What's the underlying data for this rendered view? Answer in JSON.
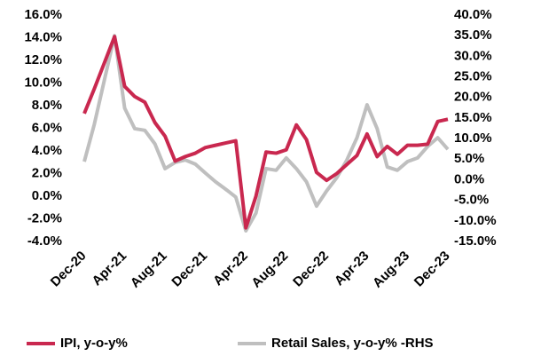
{
  "chart_data": {
    "type": "line",
    "categories": [
      "Dec-20",
      null,
      null,
      null,
      "Apr-21",
      null,
      null,
      null,
      "Aug-21",
      null,
      null,
      null,
      "Dec-21",
      null,
      null,
      null,
      "Apr-22",
      null,
      null,
      null,
      "Aug-22",
      null,
      null,
      null,
      "Dec-22",
      null,
      null,
      null,
      "Apr-23",
      null,
      null,
      null,
      "Aug-23",
      null,
      null,
      null,
      "Dec-23"
    ],
    "series": [
      {
        "name": "IPI, y-o-y%",
        "color": "#c9284f",
        "values": [
          7.3,
          9.5,
          11.8,
          14.1,
          9.7,
          8.8,
          8.3,
          6.5,
          5.3,
          3.1,
          3.5,
          3.8,
          4.3,
          4.5,
          4.7,
          4.9,
          -2.8,
          0.0,
          3.9,
          3.8,
          4.1,
          6.3,
          5.0,
          2.1,
          1.4,
          2.0,
          2.8,
          3.6,
          5.5,
          3.5,
          4.4,
          3.7,
          4.5,
          4.5,
          4.6,
          6.6,
          6.8
        ]
      },
      {
        "name": "Retail Sales, y-o-y% -RHS",
        "color": "#bfbfbf",
        "axis": "y2",
        "values": [
          4.4,
          13.5,
          24.3,
          35.0,
          17.4,
          12.4,
          12.0,
          8.7,
          2.7,
          4.2,
          4.8,
          3.8,
          1.6,
          -0.5,
          -2.3,
          -4.2,
          -12.4,
          -8.1,
          2.7,
          2.3,
          5.3,
          2.7,
          -0.5,
          -6.4,
          -2.7,
          0.5,
          4.8,
          10.2,
          18.2,
          12.4,
          3.1,
          2.3,
          4.4,
          5.3,
          8.1,
          10.2,
          7.4
        ]
      }
    ],
    "ylim": [
      -4,
      16
    ],
    "yticks": [
      {
        "value": -4,
        "label": "-4.0%"
      },
      {
        "value": -2,
        "label": "-2.0%"
      },
      {
        "value": 0,
        "label": "0.0%"
      },
      {
        "value": 2,
        "label": "2.0%"
      },
      {
        "value": 4,
        "label": "4.0%"
      },
      {
        "value": 6,
        "label": "6.0%"
      },
      {
        "value": 8,
        "label": "8.0%"
      },
      {
        "value": 10,
        "label": "10.0%"
      },
      {
        "value": 12,
        "label": "12.0%"
      },
      {
        "value": 14,
        "label": "14.0%"
      },
      {
        "value": 16,
        "label": "16.0%"
      }
    ],
    "y2lim": [
      -15,
      40
    ],
    "y2ticks": [
      {
        "value": -15,
        "label": "-15.0%"
      },
      {
        "value": -10,
        "label": "-10.0%"
      },
      {
        "value": -5,
        "label": "-5.0%"
      },
      {
        "value": 0,
        "label": "0.0%"
      },
      {
        "value": 5,
        "label": "5.0%"
      },
      {
        "value": 10,
        "label": "10.0%"
      },
      {
        "value": 15,
        "label": "15.0%"
      },
      {
        "value": 20,
        "label": "20.0%"
      },
      {
        "value": 25,
        "label": "25.0%"
      },
      {
        "value": 30,
        "label": "30.0%"
      },
      {
        "value": 35,
        "label": "35.0%"
      },
      {
        "value": 40,
        "label": "40.0%"
      }
    ],
    "grid": false,
    "legend": "bottom"
  }
}
